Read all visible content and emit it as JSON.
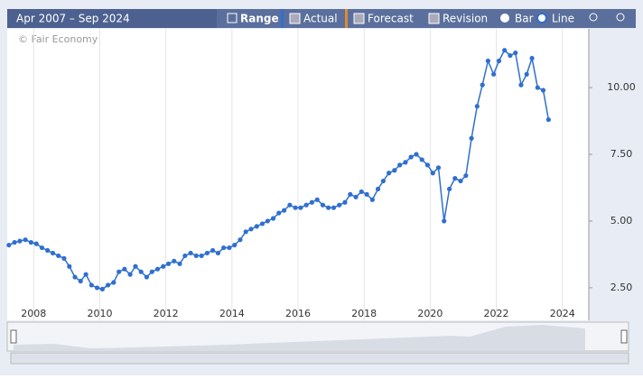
{
  "chart_data": {
    "type": "line",
    "date_range": "Apr 2007 – Sep 2024",
    "controls": [
      "Range",
      "Actual",
      "Forecast",
      "Revision",
      "Bar",
      "Line"
    ],
    "watermark": "© Fair Economy",
    "x": [
      2007.25,
      2007.42,
      2007.58,
      2007.75,
      2007.92,
      2008.08,
      2008.25,
      2008.42,
      2008.58,
      2008.75,
      2008.92,
      2009.08,
      2009.25,
      2009.42,
      2009.58,
      2009.75,
      2009.92,
      2010.08,
      2010.25,
      2010.42,
      2010.58,
      2010.75,
      2010.92,
      2011.08,
      2011.25,
      2011.42,
      2011.58,
      2011.75,
      2011.92,
      2012.08,
      2012.25,
      2012.42,
      2012.58,
      2012.75,
      2012.92,
      2013.08,
      2013.25,
      2013.42,
      2013.58,
      2013.75,
      2013.92,
      2014.08,
      2014.25,
      2014.42,
      2014.58,
      2014.75,
      2014.92,
      2015.08,
      2015.25,
      2015.42,
      2015.58,
      2015.75,
      2015.92,
      2016.08,
      2016.25,
      2016.42,
      2016.58,
      2016.75,
      2016.92,
      2017.08,
      2017.25,
      2017.42,
      2017.58,
      2017.75,
      2017.92,
      2018.08,
      2018.25,
      2018.42,
      2018.58,
      2018.75,
      2018.92,
      2019.08,
      2019.25,
      2019.42,
      2019.58,
      2019.75,
      2019.92,
      2020.08,
      2020.25,
      2020.42,
      2020.58,
      2020.75,
      2020.92,
      2021.08,
      2021.25,
      2021.42,
      2021.58,
      2021.75,
      2021.92,
      2022.08,
      2022.25,
      2022.42,
      2022.58,
      2022.75,
      2022.92,
      2023.08,
      2023.25,
      2023.42,
      2023.58
    ],
    "series": [
      {
        "color": "#2f6fd0",
        "values": [
          4.1,
          4.2,
          4.25,
          4.3,
          4.2,
          4.15,
          4.0,
          3.9,
          3.8,
          3.7,
          3.6,
          3.3,
          2.9,
          2.75,
          3.0,
          2.6,
          2.5,
          2.45,
          2.6,
          2.7,
          3.1,
          3.2,
          3.0,
          3.3,
          3.1,
          2.9,
          3.1,
          3.2,
          3.3,
          3.4,
          3.5,
          3.4,
          3.7,
          3.8,
          3.7,
          3.7,
          3.8,
          3.9,
          3.8,
          4.0,
          4.0,
          4.1,
          4.3,
          4.6,
          4.7,
          4.8,
          4.9,
          5.0,
          5.1,
          5.3,
          5.4,
          5.6,
          5.5,
          5.5,
          5.6,
          5.7,
          5.8,
          5.6,
          5.5,
          5.5,
          5.6,
          5.7,
          6.0,
          5.9,
          6.1,
          6.0,
          5.8,
          6.2,
          6.5,
          6.8,
          6.9,
          7.1,
          7.2,
          7.4,
          7.5,
          7.3,
          7.1,
          6.8,
          7.0,
          5.0,
          6.2,
          6.6,
          6.5,
          6.7,
          8.1,
          9.3,
          10.1,
          11.0,
          10.5,
          11.0,
          11.4,
          11.2,
          11.3,
          10.1,
          10.5,
          11.1,
          10.0,
          9.9,
          8.8
        ]
      }
    ],
    "xlim": [
      2007.2,
      2024.8
    ],
    "xticks": [
      2008,
      2010,
      2012,
      2014,
      2016,
      2018,
      2020,
      2022,
      2024
    ],
    "ylim": [
      1.28,
      12.2
    ],
    "yticks": [
      {
        "value": 2.5,
        "label": "2.50"
      },
      {
        "value": 5,
        "label": "5.00"
      },
      {
        "value": 7.5,
        "label": "7.50"
      },
      {
        "value": 10,
        "label": "10.00"
      }
    ],
    "grid": "x"
  }
}
